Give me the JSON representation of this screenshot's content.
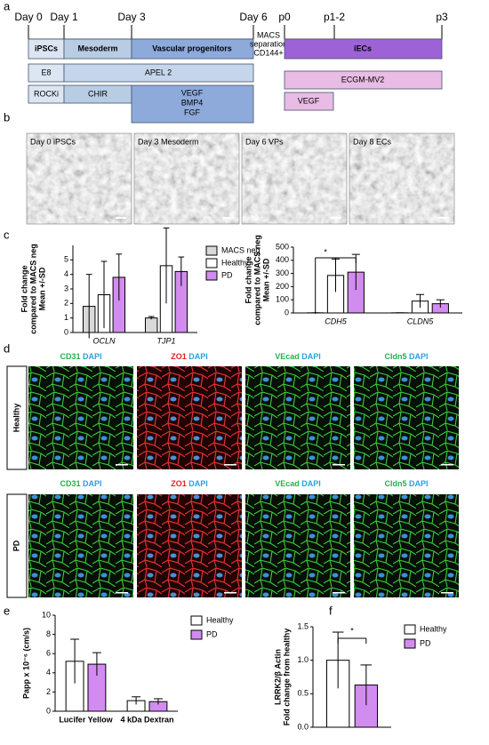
{
  "panel_labels": [
    "a",
    "b",
    "c",
    "d",
    "e",
    "f"
  ],
  "timeline": {
    "days": [
      "Day 0",
      "Day 1",
      "Day 3",
      "Day 6"
    ],
    "passages": [
      "p0",
      "p1-2",
      "p3"
    ],
    "stages": [
      "iPSCs",
      "Mesoderm",
      "Vascular progenitors"
    ],
    "macs": [
      "MACS",
      "separation",
      "CD144+"
    ],
    "iecs": "iECs",
    "media": [
      "E8",
      "APEL 2",
      "ROCKi",
      "CHIR",
      "VEGF",
      "BMP4",
      "FGF",
      "ECGM-MV2",
      "VEGF"
    ]
  },
  "micrographs": [
    "Day 0 iPSCs",
    "Day 3 Mesoderm",
    "Day 6 VPs",
    "Day 8 ECs"
  ],
  "stains": {
    "rows": [
      "Healthy",
      "PD"
    ],
    "columns": [
      [
        "CD31",
        "DAPI"
      ],
      [
        "ZO1",
        "DAPI"
      ],
      [
        "VEcad",
        "DAPI"
      ],
      [
        "Cldn5",
        "DAPI"
      ]
    ]
  },
  "chart_data": [
    {
      "type": "bar",
      "y_label": [
        "Fold change",
        "compared to MACS neg",
        "Mean +/-SD"
      ],
      "categories": [
        "OCLN",
        "TJP1"
      ],
      "series": [
        {
          "name": "MACS neg",
          "color": "#d9d9d9",
          "values": [
            1.8,
            1.0
          ],
          "errors": [
            2.2,
            0.1
          ]
        },
        {
          "name": "Healthy",
          "color": "#ffffff",
          "values": [
            2.6,
            4.6
          ],
          "errors": [
            2.3,
            2.6
          ]
        },
        {
          "name": "PD",
          "color": "#d28cf0",
          "values": [
            3.8,
            4.2
          ],
          "errors": [
            1.6,
            1.0
          ]
        }
      ],
      "ylim": [
        0,
        6
      ],
      "yticks": [
        0,
        1,
        2,
        3,
        4,
        5
      ]
    },
    {
      "type": "bar",
      "y_label": [
        "Fold change",
        "compared to MACS neg",
        "Mean +/-SD"
      ],
      "categories": [
        "CDH5",
        "CLDN5"
      ],
      "series": [
        {
          "name": "MACS neg",
          "color": "#d9d9d9",
          "values": [
            1,
            1
          ],
          "errors": [
            0,
            0
          ]
        },
        {
          "name": "Healthy",
          "color": "#ffffff",
          "values": [
            285,
            90
          ],
          "errors": [
            125,
            50
          ]
        },
        {
          "name": "PD",
          "color": "#d28cf0",
          "values": [
            310,
            70
          ],
          "errors": [
            135,
            30
          ]
        }
      ],
      "annotation": "*",
      "ylim": [
        0,
        500
      ],
      "yticks": [
        0,
        100,
        200,
        300,
        400,
        500
      ]
    },
    {
      "type": "bar",
      "y_label": [
        "Papp x 10⁻⁶ (cm/s)"
      ],
      "categories": [
        "Lucifer Yellow",
        "4 kDa Dextran"
      ],
      "series": [
        {
          "name": "Healthy",
          "color": "#ffffff",
          "values": [
            5.2,
            1.1
          ],
          "errors": [
            2.3,
            0.4
          ]
        },
        {
          "name": "PD",
          "color": "#d28cf0",
          "values": [
            4.9,
            1.0
          ],
          "errors": [
            1.2,
            0.3
          ]
        }
      ],
      "ylim": [
        0,
        10
      ],
      "yticks": [
        0,
        2,
        4,
        6,
        8,
        10
      ]
    },
    {
      "type": "bar",
      "y_label": [
        "LRRK2/β Actin",
        "Fold change from healthy"
      ],
      "categories": [
        null
      ],
      "series": [
        {
          "name": "Healthy",
          "color": "#ffffff",
          "values": [
            1.0
          ],
          "errors": [
            0.42
          ]
        },
        {
          "name": "PD",
          "color": "#d28cf0",
          "values": [
            0.63
          ],
          "errors": [
            0.3
          ]
        }
      ],
      "annotation": "*",
      "ylim": [
        0,
        1.5
      ],
      "yticks": [
        {
          "value": 0,
          "label": "0.0"
        },
        {
          "value": 0.5,
          "label": "0.5"
        },
        {
          "value": 1.0,
          "label": "1.0"
        },
        {
          "value": 1.5,
          "label": "1.5"
        }
      ]
    }
  ]
}
